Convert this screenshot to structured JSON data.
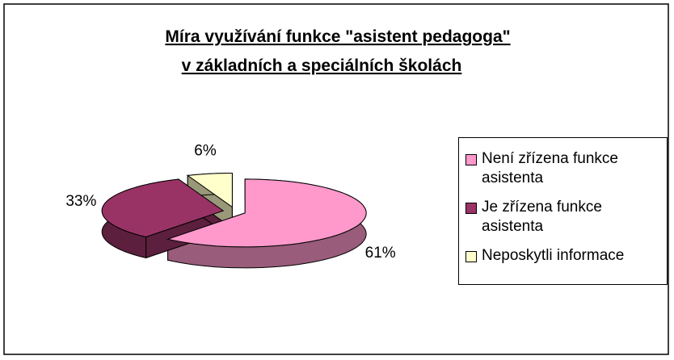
{
  "chart_data": {
    "type": "pie",
    "title": [
      "Míra využívání funkce  \"asistent pedagoga\"",
      "v základních a speciálních školách"
    ],
    "categories": [
      "Není zřízena funkce asistenta",
      "Je zřízena funkce asistenta",
      "Neposkytli informace"
    ],
    "values": [
      61,
      33,
      6
    ],
    "value_labels": [
      "61%",
      "33%",
      "6%"
    ],
    "colors": [
      "#ff99cc",
      "#993366",
      "#ffffcc"
    ],
    "legend": "right"
  }
}
